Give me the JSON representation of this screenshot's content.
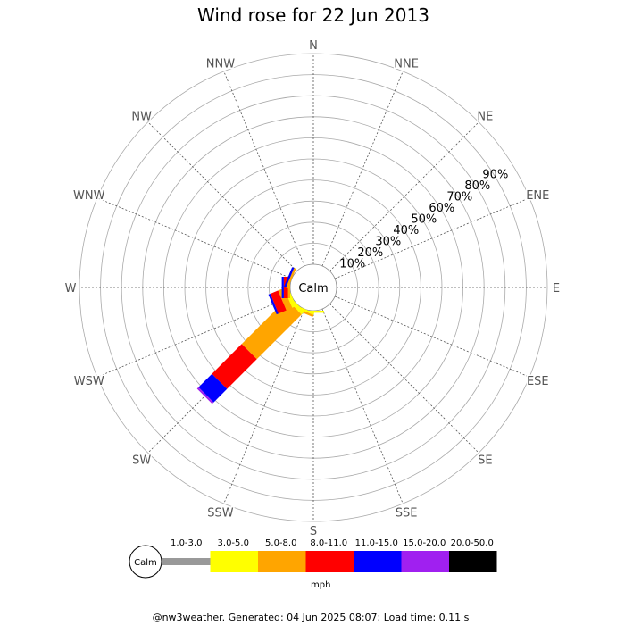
{
  "chart_data": {
    "type": "windrose",
    "title": "Wind rose for 22 Jun 2013",
    "directions": [
      "N",
      "NNE",
      "NE",
      "ENE",
      "E",
      "ESE",
      "SE",
      "SSE",
      "S",
      "SSW",
      "SW",
      "WSW",
      "W",
      "WNW",
      "NW",
      "NNW"
    ],
    "radial_ticks": [
      "10%",
      "20%",
      "30%",
      "40%",
      "50%",
      "60%",
      "70%",
      "80%",
      "90%"
    ],
    "radial_max_percent": 100,
    "calm_label": "Calm",
    "speed_unit": "mph",
    "speed_bins": [
      {
        "label": "1.0-3.0",
        "color": "#999999"
      },
      {
        "label": "3.0-5.0",
        "color": "#ffff00"
      },
      {
        "label": "5.0-8.0",
        "color": "#ffa500"
      },
      {
        "label": "8.0-11.0",
        "color": "#ff0000"
      },
      {
        "label": "11.0-15.0",
        "color": "#0000ff"
      },
      {
        "label": "15.0-20.0",
        "color": "#a020f0"
      },
      {
        "label": "20.0-50.0",
        "color": "#000000"
      }
    ],
    "series": [
      {
        "direction": "S",
        "values": [
          0,
          1,
          0,
          0,
          0,
          0,
          0
        ]
      },
      {
        "direction": "SSW",
        "values": [
          0,
          1,
          1,
          0,
          0,
          0,
          0
        ]
      },
      {
        "direction": "SW",
        "values": [
          0,
          2,
          30,
          20,
          9,
          1,
          0
        ]
      },
      {
        "direction": "WSW",
        "values": [
          0,
          2,
          3,
          4,
          1,
          0,
          0
        ]
      },
      {
        "direction": "W",
        "values": [
          0,
          0,
          1,
          2,
          1,
          0,
          0
        ]
      },
      {
        "direction": "WNW",
        "values": [
          0,
          0,
          1,
          0,
          1,
          0,
          0
        ]
      }
    ],
    "grid": true
  },
  "footer": "@nw3weather. Generated: 04 Jun 2025 08:07; Load time: 0.11 s"
}
